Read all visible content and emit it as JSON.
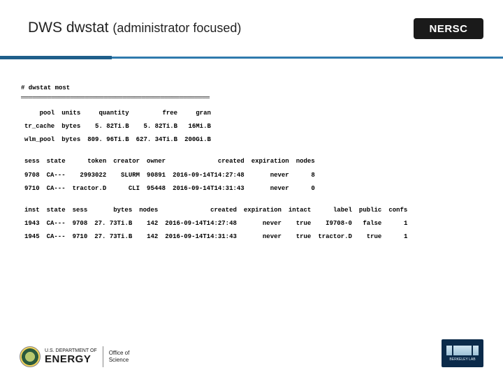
{
  "header": {
    "title_main": "DWS dwstat ",
    "title_sub": "(administrator focused)",
    "logo_text": "NERSC"
  },
  "command": "# dwstat most",
  "underline": "══════════════════════════════════════════════════",
  "pool_table": {
    "headers": [
      "pool",
      "units",
      "quantity",
      "free",
      "gran"
    ],
    "rows": [
      [
        "tr_cache",
        "bytes",
        "5. 82Ti.B",
        "5. 82Ti.B",
        "16Mi.B"
      ],
      [
        "wlm_pool",
        "bytes",
        "809. 96Ti.B",
        "627. 34Ti.B",
        "200Gi.B"
      ]
    ]
  },
  "sess_table": {
    "headers": [
      "sess",
      "state",
      "token",
      "creator",
      "owner",
      "created",
      "expiration",
      "nodes"
    ],
    "rows": [
      [
        "9708",
        "CA---",
        "2993022",
        "SLURM",
        "90891",
        "2016-09-14T14:27:48",
        "never",
        "8"
      ],
      [
        "9710",
        "CA---",
        "tractor.D",
        "CLI",
        "95448",
        "2016-09-14T14:31:43",
        "never",
        "0"
      ]
    ]
  },
  "inst_table": {
    "headers": [
      "inst",
      "state",
      "sess",
      "bytes",
      "nodes",
      "created",
      "expiration",
      "intact",
      "label",
      "public",
      "confs"
    ],
    "rows": [
      [
        "1943",
        "CA---",
        "9708",
        "27. 73Ti.B",
        "142",
        "2016-09-14T14:27:48",
        "never",
        "true",
        "I9708-0",
        "false",
        "1"
      ],
      [
        "1945",
        "CA---",
        "9710",
        "27. 73Ti.B",
        "142",
        "2016-09-14T14:31:43",
        "never",
        "true",
        "tractor.D",
        "true",
        "1"
      ]
    ]
  },
  "footer": {
    "dept": "U.S. DEPARTMENT OF",
    "energy": "ENERGY",
    "office1": "Office of",
    "office2": "Science",
    "lab": "BERKELEY LAB"
  },
  "colors": {
    "rule_dark": "#1f5f8b",
    "rule_light": "#2f7aad",
    "text": "#000000",
    "bg": "#ffffff"
  }
}
